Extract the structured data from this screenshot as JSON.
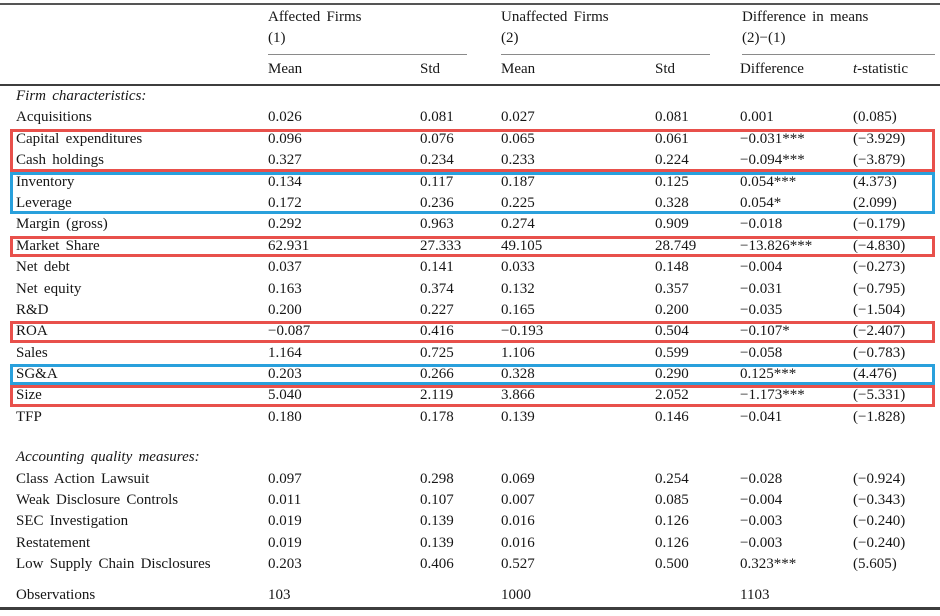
{
  "colors": {
    "highlight_red": "#e8504b",
    "highlight_blue": "#29a0dc"
  },
  "header": {
    "groups": [
      {
        "line1": "Affected Firms",
        "line2": "(1)"
      },
      {
        "line1": "Unaffected Firms",
        "line2": "(2)"
      },
      {
        "line1": "Difference in means",
        "line2": "(2)−(1)"
      }
    ],
    "sub": {
      "mean1": "Mean",
      "std1": "Std",
      "mean2": "Mean",
      "std2": "Std",
      "difference": "Difference",
      "tstat_prefix": "t",
      "tstat_rest": "-statistic"
    }
  },
  "table": {
    "sections": [
      {
        "title": "Firm characteristics:",
        "rows": [
          {
            "label": "Acquisitions",
            "cells": [
              "0.026",
              "0.081",
              "0.027",
              "0.081",
              "0.001",
              "(0.085)"
            ]
          },
          {
            "label": "Capital expenditures",
            "cells": [
              "0.096",
              "0.076",
              "0.065",
              "0.061",
              "−0.031***",
              "(−3.929)"
            ],
            "hl": "red",
            "hlpos": "start"
          },
          {
            "label": "Cash holdings",
            "cells": [
              "0.327",
              "0.234",
              "0.233",
              "0.224",
              "−0.094***",
              "(−3.879)"
            ],
            "hl": "red",
            "hlpos": "end"
          },
          {
            "label": "Inventory",
            "cells": [
              "0.134",
              "0.117",
              "0.187",
              "0.125",
              "0.054***",
              "(4.373)"
            ],
            "hl": "blue",
            "hlpos": "start"
          },
          {
            "label": "Leverage",
            "cells": [
              "0.172",
              "0.236",
              "0.225",
              "0.328",
              "0.054*",
              "(2.099)"
            ],
            "hl": "blue",
            "hlpos": "end"
          },
          {
            "label": "Margin (gross)",
            "cells": [
              "0.292",
              "0.963",
              "0.274",
              "0.909",
              "−0.018",
              "(−0.179)"
            ]
          },
          {
            "label": "Market Share",
            "cells": [
              "62.931",
              "27.333",
              "49.105",
              "28.749",
              "−13.826***",
              "(−4.830)"
            ],
            "hl": "red",
            "hlpos": "single"
          },
          {
            "label": "Net debt",
            "cells": [
              "0.037",
              "0.141",
              "0.033",
              "0.148",
              "−0.004",
              "(−0.273)"
            ]
          },
          {
            "label": "Net equity",
            "cells": [
              "0.163",
              "0.374",
              "0.132",
              "0.357",
              "−0.031",
              "(−0.795)"
            ]
          },
          {
            "label": "R&D",
            "cells": [
              "0.200",
              "0.227",
              "0.165",
              "0.200",
              "−0.035",
              "(−1.504)"
            ]
          },
          {
            "label": "ROA",
            "cells": [
              "−0.087",
              "0.416",
              "−0.193",
              "0.504",
              "−0.107*",
              "(−2.407)"
            ],
            "hl": "red",
            "hlpos": "single"
          },
          {
            "label": "Sales",
            "cells": [
              "1.164",
              "0.725",
              "1.106",
              "0.599",
              "−0.058",
              "(−0.783)"
            ]
          },
          {
            "label": "SG&A",
            "cells": [
              "0.203",
              "0.266",
              "0.328",
              "0.290",
              "0.125***",
              "(4.476)"
            ],
            "hl": "blue",
            "hlpos": "single"
          },
          {
            "label": "Size",
            "cells": [
              "5.040",
              "2.119",
              "3.866",
              "2.052",
              "−1.173***",
              "(−5.331)"
            ],
            "hl": "red",
            "hlpos": "single"
          },
          {
            "label": "TFP",
            "cells": [
              "0.180",
              "0.178",
              "0.139",
              "0.146",
              "−0.041",
              "(−1.828)"
            ]
          }
        ]
      },
      {
        "title": "Accounting quality measures:",
        "rows": [
          {
            "label": "Class Action Lawsuit",
            "cells": [
              "0.097",
              "0.298",
              "0.069",
              "0.254",
              "−0.028",
              "(−0.924)"
            ]
          },
          {
            "label": "Weak Disclosure Controls",
            "cells": [
              "0.011",
              "0.107",
              "0.007",
              "0.085",
              "−0.004",
              "(−0.343)"
            ]
          },
          {
            "label": "SEC Investigation",
            "cells": [
              "0.019",
              "0.139",
              "0.016",
              "0.126",
              "−0.003",
              "(−0.240)"
            ]
          },
          {
            "label": "Restatement",
            "cells": [
              "0.019",
              "0.139",
              "0.016",
              "0.126",
              "−0.003",
              "(−0.240)"
            ]
          },
          {
            "label": "Low Supply Chain Disclosures",
            "cells": [
              "0.203",
              "0.406",
              "0.527",
              "0.500",
              "0.323***",
              "(5.605)"
            ]
          }
        ]
      }
    ]
  },
  "footer": {
    "label": "Observations",
    "affected_n": "103",
    "unaffected_n": "1000",
    "total_n": "1103"
  }
}
